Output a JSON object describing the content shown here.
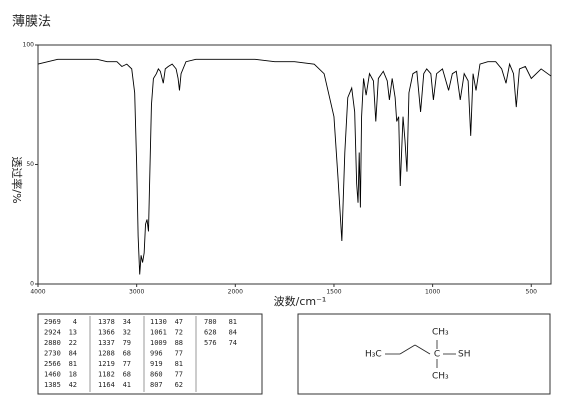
{
  "chart_data": {
    "type": "line",
    "title": "薄膜法",
    "ylabel": "透过率/%",
    "xlabel": "波数/cm⁻¹",
    "xlim": [
      4000,
      400
    ],
    "xticks": [
      4000,
      3000,
      2000,
      1500,
      1000,
      500
    ],
    "ylim": [
      0,
      100
    ],
    "yticks": [
      0,
      50,
      100
    ],
    "color": "#000000",
    "grid": false,
    "x": [
      4000,
      3900,
      3800,
      3700,
      3600,
      3500,
      3400,
      3300,
      3200,
      3150,
      3100,
      3050,
      3020,
      3000,
      2985,
      2969,
      2955,
      2940,
      2924,
      2910,
      2895,
      2880,
      2870,
      2850,
      2830,
      2800,
      2780,
      2760,
      2730,
      2710,
      2680,
      2640,
      2600,
      2580,
      2566,
      2550,
      2500,
      2400,
      2300,
      2200,
      2100,
      2000,
      1900,
      1800,
      1700,
      1600,
      1550,
      1500,
      1480,
      1460,
      1445,
      1430,
      1410,
      1395,
      1385,
      1378,
      1372,
      1366,
      1360,
      1350,
      1337,
      1320,
      1300,
      1288,
      1275,
      1250,
      1230,
      1219,
      1205,
      1190,
      1182,
      1172,
      1164,
      1150,
      1140,
      1130,
      1120,
      1100,
      1080,
      1061,
      1045,
      1030,
      1009,
      996,
      980,
      950,
      919,
      900,
      880,
      860,
      840,
      820,
      807,
      795,
      780,
      760,
      720,
      680,
      650,
      628,
      610,
      590,
      576,
      560,
      530,
      500,
      450,
      400
    ],
    "values": [
      92,
      93,
      94,
      94,
      94,
      94,
      94,
      93,
      93,
      91,
      92,
      90,
      80,
      50,
      20,
      4,
      12,
      9,
      13,
      25,
      27,
      22,
      40,
      75,
      86,
      88,
      90,
      89,
      84,
      90,
      91,
      92,
      90,
      86,
      81,
      88,
      93,
      94,
      94,
      94,
      94,
      94,
      94,
      93,
      93,
      92,
      88,
      70,
      45,
      18,
      55,
      78,
      82,
      72,
      42,
      34,
      55,
      32,
      70,
      86,
      79,
      88,
      85,
      68,
      86,
      89,
      85,
      77,
      86,
      78,
      68,
      70,
      41,
      70,
      60,
      47,
      80,
      88,
      89,
      72,
      88,
      90,
      88,
      77,
      88,
      90,
      81,
      88,
      89,
      77,
      88,
      85,
      62,
      88,
      81,
      92,
      93,
      93,
      90,
      84,
      92,
      88,
      74,
      90,
      91,
      86,
      90,
      87
    ]
  },
  "peak_table": {
    "peaks": [
      [
        2969,
        4
      ],
      [
        2924,
        13
      ],
      [
        2880,
        22
      ],
      [
        2730,
        84
      ],
      [
        2566,
        81
      ],
      [
        1460,
        18
      ],
      [
        1385,
        42
      ],
      [
        1378,
        34
      ],
      [
        1366,
        32
      ],
      [
        1337,
        79
      ],
      [
        1288,
        68
      ],
      [
        1219,
        77
      ],
      [
        1182,
        68
      ],
      [
        1164,
        41
      ],
      [
        1130,
        47
      ],
      [
        1061,
        72
      ],
      [
        1009,
        88
      ],
      [
        996,
        77
      ],
      [
        919,
        81
      ],
      [
        860,
        77
      ],
      [
        807,
        62
      ],
      [
        780,
        81
      ],
      [
        628,
        84
      ],
      [
        576,
        74
      ]
    ]
  },
  "structure": {
    "top": "CH₃",
    "left": "H₃C",
    "center": "C",
    "right": "SH",
    "bottom": "CH₃"
  }
}
